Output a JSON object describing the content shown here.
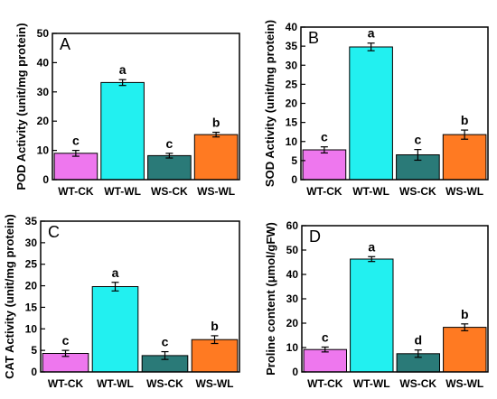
{
  "colors": {
    "bars": [
      "#ee77ee",
      "#22f0f0",
      "#2a7a78",
      "#ff7a22"
    ],
    "axis": "#000000"
  },
  "chart_data": [
    {
      "type": "bar",
      "panel": "A",
      "categories": [
        "WT-CK",
        "WT-WL",
        "WS-CK",
        "WS-WL"
      ],
      "values": [
        9,
        33.2,
        8.2,
        15.4
      ],
      "errors": [
        1.0,
        1.0,
        0.8,
        0.8
      ],
      "significance": [
        "c",
        "a",
        "c",
        "b"
      ],
      "ylabel": "POD Activity (unit/mg protein)",
      "ylim": [
        0,
        50
      ],
      "yticks": [
        0,
        10,
        20,
        30,
        40,
        50
      ],
      "grid": false
    },
    {
      "type": "bar",
      "panel": "B",
      "categories": [
        "WT-CK",
        "WT-WL",
        "WS-CK",
        "WS-WL"
      ],
      "values": [
        7.8,
        34.8,
        6.5,
        11.8
      ],
      "errors": [
        0.8,
        1.0,
        1.4,
        1.2
      ],
      "significance": [
        "c",
        "a",
        "c",
        "b"
      ],
      "ylabel": "SOD Activity (unit/mg protein)",
      "ylim": [
        0,
        40
      ],
      "yticks": [
        0,
        5,
        10,
        15,
        20,
        25,
        30,
        35,
        40
      ],
      "grid": false
    },
    {
      "type": "bar",
      "panel": "C",
      "categories": [
        "WT-CK",
        "WT-WL",
        "WS-CK",
        "WS-WL"
      ],
      "values": [
        4.3,
        19.8,
        3.8,
        7.5
      ],
      "errors": [
        0.7,
        1.0,
        0.9,
        0.9
      ],
      "significance": [
        "c",
        "a",
        "c",
        "b"
      ],
      "ylabel": "CAT Activity (unit/mg protein)",
      "ylim": [
        0,
        35
      ],
      "yticks": [
        0,
        5,
        10,
        15,
        20,
        25,
        30,
        35
      ],
      "grid": false
    },
    {
      "type": "bar",
      "panel": "D",
      "categories": [
        "WT-CK",
        "WT-WL",
        "WS-CK",
        "WS-WL"
      ],
      "values": [
        9.2,
        46.3,
        7.5,
        18.3
      ],
      "errors": [
        1.0,
        1.0,
        1.5,
        1.4
      ],
      "significance": [
        "c",
        "a",
        "d",
        "b"
      ],
      "ylabel": "Proline content (μmol/gFW)",
      "ylim": [
        0,
        60
      ],
      "yticks": [
        0,
        10,
        20,
        30,
        40,
        50,
        60
      ],
      "grid": false
    }
  ]
}
